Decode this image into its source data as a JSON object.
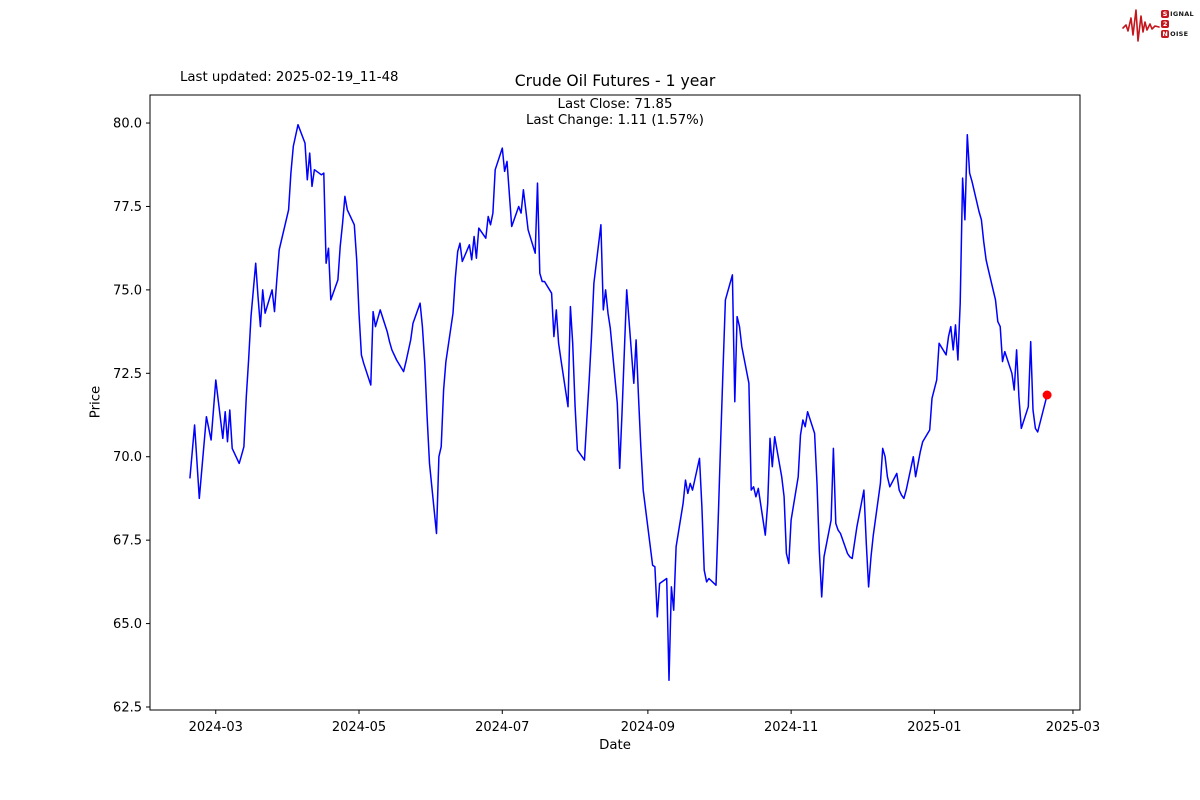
{
  "header": {
    "last_updated": "Last updated: 2025-02-19_11-48",
    "logo": {
      "color": "#c4161c",
      "word1_initial": "S",
      "word1_rest": "IGNAL",
      "word2": "2",
      "word3_initial": "N",
      "word3_rest": "OISE"
    }
  },
  "chart_data": {
    "type": "line",
    "title": "Crude Oil Futures - 1 year",
    "subtitle1": "Last Close: 71.85",
    "subtitle2": "Last Change: 1.11 (1.57%)",
    "xlabel": "Date",
    "ylabel": "Price",
    "last_close": 71.85,
    "last_change": 1.11,
    "last_change_pct": 1.57,
    "grid": false,
    "legend": null,
    "line_color": "#0000ff",
    "last_point_color": "#ff0000",
    "frame_color": "#000000",
    "ylim": [
      62.41,
      80.84
    ],
    "xlim": [
      "2024-02-02",
      "2025-03-04"
    ],
    "yticks": [
      {
        "v": 62.5,
        "label": "62.5"
      },
      {
        "v": 65.0,
        "label": "65.0"
      },
      {
        "v": 67.5,
        "label": "67.5"
      },
      {
        "v": 70.0,
        "label": "70.0"
      },
      {
        "v": 72.5,
        "label": "72.5"
      },
      {
        "v": 75.0,
        "label": "75.0"
      },
      {
        "v": 77.5,
        "label": "77.5"
      },
      {
        "v": 80.0,
        "label": "80.0"
      }
    ],
    "xticks": [
      {
        "d": "2024-03-01",
        "label": "2024-03"
      },
      {
        "d": "2024-05-01",
        "label": "2024-05"
      },
      {
        "d": "2024-07-01",
        "label": "2024-07"
      },
      {
        "d": "2024-09-01",
        "label": "2024-09"
      },
      {
        "d": "2024-11-01",
        "label": "2024-11"
      },
      {
        "d": "2025-01-01",
        "label": "2025-01"
      },
      {
        "d": "2025-03-01",
        "label": "2025-03"
      }
    ],
    "series": [
      {
        "name": "Crude Oil Futures close price",
        "points": [
          [
            "2024-02-19",
            69.35
          ],
          [
            "2024-02-21",
            70.95
          ],
          [
            "2024-02-23",
            68.75
          ],
          [
            "2024-02-26",
            71.2
          ],
          [
            "2024-02-28",
            70.5
          ],
          [
            "2024-03-01",
            72.3
          ],
          [
            "2024-03-04",
            70.55
          ],
          [
            "2024-03-05",
            71.35
          ],
          [
            "2024-03-06",
            70.45
          ],
          [
            "2024-03-07",
            71.4
          ],
          [
            "2024-03-08",
            70.25
          ],
          [
            "2024-03-11",
            69.8
          ],
          [
            "2024-03-12",
            70.05
          ],
          [
            "2024-03-13",
            70.3
          ],
          [
            "2024-03-14",
            71.8
          ],
          [
            "2024-03-15",
            72.9
          ],
          [
            "2024-03-16",
            74.2
          ],
          [
            "2024-03-18",
            75.8
          ],
          [
            "2024-03-19",
            74.8
          ],
          [
            "2024-03-20",
            73.9
          ],
          [
            "2024-03-21",
            75.0
          ],
          [
            "2024-03-22",
            74.3
          ],
          [
            "2024-03-25",
            75.0
          ],
          [
            "2024-03-26",
            74.35
          ],
          [
            "2024-03-27",
            75.3
          ],
          [
            "2024-03-28",
            76.2
          ],
          [
            "2024-04-01",
            77.4
          ],
          [
            "2024-04-02",
            78.5
          ],
          [
            "2024-04-03",
            79.3
          ],
          [
            "2024-04-05",
            79.95
          ],
          [
            "2024-04-08",
            79.4
          ],
          [
            "2024-04-09",
            78.3
          ],
          [
            "2024-04-10",
            79.1
          ],
          [
            "2024-04-11",
            78.1
          ],
          [
            "2024-04-12",
            78.6
          ],
          [
            "2024-04-15",
            78.45
          ],
          [
            "2024-04-16",
            78.5
          ],
          [
            "2024-04-17",
            75.8
          ],
          [
            "2024-04-18",
            76.25
          ],
          [
            "2024-04-19",
            74.7
          ],
          [
            "2024-04-22",
            75.3
          ],
          [
            "2024-04-23",
            76.3
          ],
          [
            "2024-04-24",
            77.0
          ],
          [
            "2024-04-25",
            77.8
          ],
          [
            "2024-04-26",
            77.4
          ],
          [
            "2024-04-29",
            76.95
          ],
          [
            "2024-04-30",
            75.9
          ],
          [
            "2024-05-01",
            74.3
          ],
          [
            "2024-05-02",
            73.05
          ],
          [
            "2024-05-03",
            72.8
          ],
          [
            "2024-05-06",
            72.15
          ],
          [
            "2024-05-07",
            74.35
          ],
          [
            "2024-05-08",
            73.9
          ],
          [
            "2024-05-10",
            74.4
          ],
          [
            "2024-05-13",
            73.75
          ],
          [
            "2024-05-14",
            73.45
          ],
          [
            "2024-05-15",
            73.2
          ],
          [
            "2024-05-17",
            72.9
          ],
          [
            "2024-05-20",
            72.55
          ],
          [
            "2024-05-21",
            72.85
          ],
          [
            "2024-05-23",
            73.5
          ],
          [
            "2024-05-24",
            74.0
          ],
          [
            "2024-05-27",
            74.6
          ],
          [
            "2024-05-28",
            73.9
          ],
          [
            "2024-05-29",
            72.8
          ],
          [
            "2024-05-30",
            71.2
          ],
          [
            "2024-05-31",
            69.8
          ],
          [
            "2024-06-03",
            67.7
          ],
          [
            "2024-06-04",
            70.0
          ],
          [
            "2024-06-05",
            70.3
          ],
          [
            "2024-06-06",
            72.0
          ],
          [
            "2024-06-07",
            72.85
          ],
          [
            "2024-06-10",
            74.3
          ],
          [
            "2024-06-11",
            75.35
          ],
          [
            "2024-06-12",
            76.15
          ],
          [
            "2024-06-13",
            76.4
          ],
          [
            "2024-06-14",
            75.85
          ],
          [
            "2024-06-17",
            76.35
          ],
          [
            "2024-06-18",
            75.9
          ],
          [
            "2024-06-19",
            76.6
          ],
          [
            "2024-06-20",
            75.95
          ],
          [
            "2024-06-21",
            76.85
          ],
          [
            "2024-06-24",
            76.55
          ],
          [
            "2024-06-25",
            77.2
          ],
          [
            "2024-06-26",
            76.95
          ],
          [
            "2024-06-27",
            77.3
          ],
          [
            "2024-06-28",
            78.6
          ],
          [
            "2024-07-01",
            79.25
          ],
          [
            "2024-07-02",
            78.55
          ],
          [
            "2024-07-03",
            78.85
          ],
          [
            "2024-07-05",
            76.9
          ],
          [
            "2024-07-08",
            77.5
          ],
          [
            "2024-07-09",
            77.3
          ],
          [
            "2024-07-10",
            78.0
          ],
          [
            "2024-07-11",
            77.4
          ],
          [
            "2024-07-12",
            76.8
          ],
          [
            "2024-07-15",
            76.1
          ],
          [
            "2024-07-16",
            78.2
          ],
          [
            "2024-07-17",
            75.5
          ],
          [
            "2024-07-18",
            75.25
          ],
          [
            "2024-07-19",
            75.25
          ],
          [
            "2024-07-22",
            74.9
          ],
          [
            "2024-07-23",
            73.6
          ],
          [
            "2024-07-24",
            74.4
          ],
          [
            "2024-07-25",
            73.4
          ],
          [
            "2024-07-26",
            72.9
          ],
          [
            "2024-07-29",
            71.5
          ],
          [
            "2024-07-30",
            74.5
          ],
          [
            "2024-07-31",
            73.4
          ],
          [
            "2024-08-01",
            71.5
          ],
          [
            "2024-08-02",
            70.2
          ],
          [
            "2024-08-05",
            69.9
          ],
          [
            "2024-08-06",
            71.1
          ],
          [
            "2024-08-07",
            72.3
          ],
          [
            "2024-08-08",
            73.6
          ],
          [
            "2024-08-09",
            75.2
          ],
          [
            "2024-08-12",
            76.95
          ],
          [
            "2024-08-13",
            74.4
          ],
          [
            "2024-08-14",
            75.0
          ],
          [
            "2024-08-15",
            74.3
          ],
          [
            "2024-08-16",
            73.85
          ],
          [
            "2024-08-19",
            71.6
          ],
          [
            "2024-08-20",
            69.65
          ],
          [
            "2024-08-21",
            71.3
          ],
          [
            "2024-08-22",
            73.2
          ],
          [
            "2024-08-23",
            75.0
          ],
          [
            "2024-08-26",
            72.2
          ],
          [
            "2024-08-27",
            73.5
          ],
          [
            "2024-08-28",
            71.8
          ],
          [
            "2024-08-29",
            70.3
          ],
          [
            "2024-08-30",
            69.0
          ],
          [
            "2024-09-03",
            66.75
          ],
          [
            "2024-09-04",
            66.7
          ],
          [
            "2024-09-05",
            65.2
          ],
          [
            "2024-09-06",
            66.2
          ],
          [
            "2024-09-09",
            66.35
          ],
          [
            "2024-09-10",
            63.3
          ],
          [
            "2024-09-11",
            66.1
          ],
          [
            "2024-09-12",
            65.4
          ],
          [
            "2024-09-13",
            67.3
          ],
          [
            "2024-09-16",
            68.6
          ],
          [
            "2024-09-17",
            69.3
          ],
          [
            "2024-09-18",
            68.9
          ],
          [
            "2024-09-19",
            69.2
          ],
          [
            "2024-09-20",
            69.0
          ],
          [
            "2024-09-23",
            69.95
          ],
          [
            "2024-09-24",
            68.5
          ],
          [
            "2024-09-25",
            66.6
          ],
          [
            "2024-09-26",
            66.25
          ],
          [
            "2024-09-27",
            66.35
          ],
          [
            "2024-09-30",
            66.15
          ],
          [
            "2024-10-01",
            68.2
          ],
          [
            "2024-10-02",
            70.5
          ],
          [
            "2024-10-03",
            72.6
          ],
          [
            "2024-10-04",
            74.7
          ],
          [
            "2024-10-07",
            75.45
          ],
          [
            "2024-10-08",
            71.65
          ],
          [
            "2024-10-09",
            74.2
          ],
          [
            "2024-10-10",
            73.9
          ],
          [
            "2024-10-11",
            73.3
          ],
          [
            "2024-10-14",
            72.2
          ],
          [
            "2024-10-15",
            69.0
          ],
          [
            "2024-10-16",
            69.1
          ],
          [
            "2024-10-17",
            68.8
          ],
          [
            "2024-10-18",
            69.05
          ],
          [
            "2024-10-21",
            67.65
          ],
          [
            "2024-10-22",
            68.6
          ],
          [
            "2024-10-23",
            70.55
          ],
          [
            "2024-10-24",
            69.7
          ],
          [
            "2024-10-25",
            70.6
          ],
          [
            "2024-10-28",
            69.4
          ],
          [
            "2024-10-29",
            68.8
          ],
          [
            "2024-10-30",
            67.1
          ],
          [
            "2024-10-31",
            66.8
          ],
          [
            "2024-11-01",
            68.1
          ],
          [
            "2024-11-04",
            69.4
          ],
          [
            "2024-11-05",
            70.65
          ],
          [
            "2024-11-06",
            71.1
          ],
          [
            "2024-11-07",
            70.9
          ],
          [
            "2024-11-08",
            71.35
          ],
          [
            "2024-11-11",
            70.7
          ],
          [
            "2024-11-12",
            69.2
          ],
          [
            "2024-11-13",
            67.2
          ],
          [
            "2024-11-14",
            65.8
          ],
          [
            "2024-11-15",
            67.0
          ],
          [
            "2024-11-18",
            68.1
          ],
          [
            "2024-11-19",
            70.25
          ],
          [
            "2024-11-20",
            68.0
          ],
          [
            "2024-11-21",
            67.8
          ],
          [
            "2024-11-22",
            67.7
          ],
          [
            "2024-11-25",
            67.1
          ],
          [
            "2024-11-26",
            67.0
          ],
          [
            "2024-11-27",
            66.95
          ],
          [
            "2024-11-29",
            67.9
          ],
          [
            "2024-12-02",
            69.0
          ],
          [
            "2024-12-03",
            67.4
          ],
          [
            "2024-12-04",
            66.1
          ],
          [
            "2024-12-05",
            67.0
          ],
          [
            "2024-12-06",
            67.65
          ],
          [
            "2024-12-09",
            69.2
          ],
          [
            "2024-12-10",
            70.25
          ],
          [
            "2024-12-11",
            70.0
          ],
          [
            "2024-12-12",
            69.4
          ],
          [
            "2024-12-13",
            69.1
          ],
          [
            "2024-12-16",
            69.5
          ],
          [
            "2024-12-17",
            69.0
          ],
          [
            "2024-12-18",
            68.85
          ],
          [
            "2024-12-19",
            68.75
          ],
          [
            "2024-12-20",
            69.0
          ],
          [
            "2024-12-23",
            70.0
          ],
          [
            "2024-12-24",
            69.4
          ],
          [
            "2024-12-26",
            70.15
          ],
          [
            "2024-12-27",
            70.45
          ],
          [
            "2024-12-30",
            70.8
          ],
          [
            "2024-12-31",
            71.75
          ],
          [
            "2025-01-02",
            72.3
          ],
          [
            "2025-01-03",
            73.4
          ],
          [
            "2025-01-06",
            73.05
          ],
          [
            "2025-01-07",
            73.6
          ],
          [
            "2025-01-08",
            73.9
          ],
          [
            "2025-01-09",
            73.2
          ],
          [
            "2025-01-10",
            73.95
          ],
          [
            "2025-01-11",
            72.9
          ],
          [
            "2025-01-12",
            74.6
          ],
          [
            "2025-01-13",
            78.35
          ],
          [
            "2025-01-14",
            77.1
          ],
          [
            "2025-01-15",
            79.65
          ],
          [
            "2025-01-16",
            78.5
          ],
          [
            "2025-01-17",
            78.25
          ],
          [
            "2025-01-20",
            77.35
          ],
          [
            "2025-01-21",
            77.1
          ],
          [
            "2025-01-22",
            76.45
          ],
          [
            "2025-01-23",
            75.9
          ],
          [
            "2025-01-24",
            75.6
          ],
          [
            "2025-01-27",
            74.7
          ],
          [
            "2025-01-28",
            74.05
          ],
          [
            "2025-01-29",
            73.9
          ],
          [
            "2025-01-30",
            72.85
          ],
          [
            "2025-01-31",
            73.15
          ],
          [
            "2025-02-03",
            72.5
          ],
          [
            "2025-02-04",
            72.0
          ],
          [
            "2025-02-05",
            73.2
          ],
          [
            "2025-02-06",
            71.8
          ],
          [
            "2025-02-07",
            70.85
          ],
          [
            "2025-02-10",
            71.5
          ],
          [
            "2025-02-11",
            73.45
          ],
          [
            "2025-02-12",
            71.4
          ],
          [
            "2025-02-13",
            70.85
          ],
          [
            "2025-02-14",
            70.74
          ],
          [
            "2025-02-18",
            71.85
          ]
        ]
      }
    ]
  }
}
